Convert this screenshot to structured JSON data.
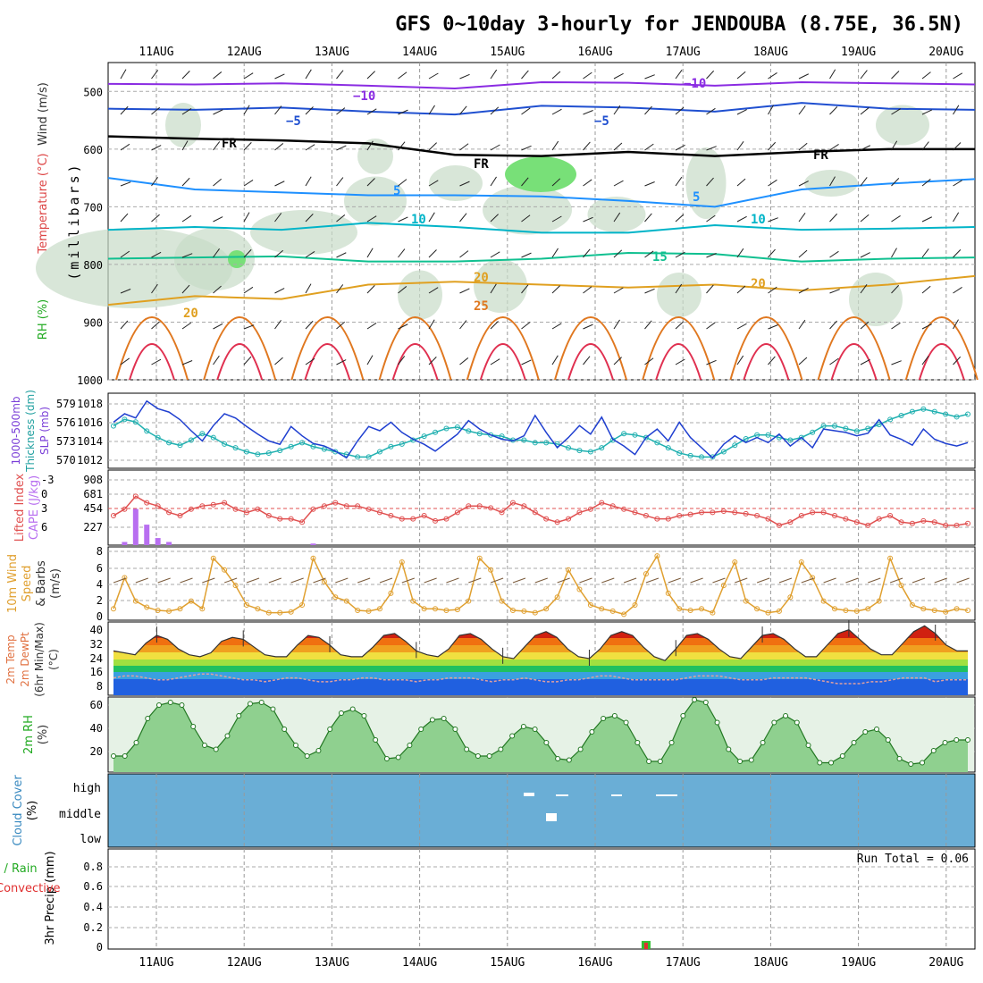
{
  "page": {
    "title": "GFS 0~10day 3-hourly for JENDOUBA (8.75E, 36.5N)"
  },
  "chart_data": [
    {
      "type": "line",
      "panel": "upper-air",
      "dates": [
        "11AUG",
        "12AUG",
        "13AUG",
        "14AUG",
        "15AUG",
        "16AUG",
        "17AUG",
        "18AUG",
        "19AUG",
        "20AUG"
      ],
      "ylabel_left": "(millibars)",
      "ylabel_parts": [
        {
          "text": "Wind (m/s)",
          "color": "#333333"
        },
        {
          "text": "Temperature (°C)",
          "color": "#dd4444"
        },
        {
          "text": "RH (%)",
          "color": "#22aa22"
        }
      ],
      "ylim": [
        1000,
        450
      ],
      "yticks": [
        500,
        600,
        700,
        800,
        900,
        1000
      ],
      "isotherms": [
        {
          "label": "−10",
          "color": "#8a2be2",
          "levels": [
            487,
            488,
            486,
            490,
            495,
            484,
            485,
            490,
            484,
            486,
            488
          ]
        },
        {
          "label": "−5",
          "color": "#1f4fd0",
          "levels": [
            530,
            532,
            528,
            535,
            540,
            525,
            528,
            535,
            520,
            530,
            532
          ]
        },
        {
          "label": "FR",
          "color": "#000000",
          "levels": [
            578,
            582,
            585,
            590,
            610,
            612,
            605,
            612,
            605,
            600,
            600
          ]
        },
        {
          "label": "5",
          "color": "#1e90ff",
          "levels": [
            650,
            670,
            675,
            680,
            680,
            682,
            690,
            700,
            670,
            660,
            652
          ]
        },
        {
          "label": "10",
          "color": "#00b4c8",
          "levels": [
            740,
            735,
            740,
            728,
            735,
            745,
            745,
            732,
            740,
            738,
            735
          ]
        },
        {
          "label": "15",
          "color": "#10c090",
          "levels": [
            790,
            788,
            786,
            795,
            795,
            790,
            780,
            782,
            795,
            790,
            788
          ]
        },
        {
          "label": "20",
          "color": "#e0a020",
          "levels": [
            870,
            855,
            860,
            835,
            830,
            835,
            840,
            835,
            845,
            835,
            820
          ]
        }
      ],
      "isotherm_labels": [
        {
          "text": "−10",
          "series": 0
        },
        {
          "text": "−10",
          "series": 0
        },
        {
          "text": "−5",
          "series": 1
        },
        {
          "text": "−5",
          "series": 1
        },
        {
          "text": "FR",
          "series": 2
        },
        {
          "text": "FR",
          "series": 2
        },
        {
          "text": "FR",
          "series": 2
        },
        {
          "text": "5",
          "series": 3
        },
        {
          "text": "5",
          "series": 3
        },
        {
          "text": "10",
          "series": 4
        },
        {
          "text": "10",
          "series": 4
        },
        {
          "text": "15",
          "series": 5
        },
        {
          "text": "20",
          "series": 6
        },
        {
          "text": "20",
          "series": 6
        },
        {
          "text": "20",
          "series": 6
        },
        {
          "text": "25",
          "series": 6
        }
      ]
    },
    {
      "type": "line",
      "panel": "slp-thickness",
      "ylabel": [
        "1000-500mb",
        "Thickness (dm)",
        "SLP (mb)"
      ],
      "left_ticks": [
        "579",
        "576",
        "573",
        "570"
      ],
      "right_ticks": [
        "1018",
        "1016",
        "1014",
        "1012"
      ],
      "series": [
        {
          "name": "SLP (mb)",
          "color": "#1f3fd0",
          "ylim": [
            1011,
            1019
          ],
          "values": [
            1016,
            1017,
            1016.5,
            1018.5,
            1017.6,
            1017.2,
            1016.3,
            1015,
            1013.8,
            1015.6,
            1017,
            1016.5,
            1015.5,
            1014.6,
            1013.8,
            1013.4,
            1015.5,
            1014.4,
            1013.5,
            1013.2,
            1012.6,
            1011.8,
            1013.8,
            1015.5,
            1015,
            1016,
            1014.8,
            1014,
            1013.4,
            1012.6,
            1013.6,
            1014.6,
            1016.2,
            1015.2,
            1014.5,
            1014,
            1013.8,
            1014.4,
            1016.8,
            1014.8,
            1013,
            1014.2,
            1015.6,
            1014.6,
            1016.6,
            1014,
            1013.2,
            1012.2,
            1014.2,
            1015.2,
            1013.8,
            1016,
            1014.2,
            1013,
            1011.8,
            1013.4,
            1014.4,
            1013.6,
            1014.2,
            1013.6,
            1014.6,
            1013.2,
            1014.2,
            1013,
            1015.2,
            1015,
            1014.8,
            1014.4,
            1014.7,
            1016.3,
            1014.5,
            1014,
            1013.3,
            1015.2,
            1014,
            1013.5,
            1013.2,
            1013.6
          ]
        },
        {
          "name": "Thickness (dm)",
          "color": "#20b0b0",
          "ylim": [
            570,
            580.5
          ],
          "values": [
            576,
            577,
            576.6,
            575.2,
            574.2,
            573.4,
            573,
            573.8,
            574.8,
            574.2,
            573.2,
            572.6,
            572,
            571.6,
            571.8,
            572.2,
            572.8,
            573.4,
            572.8,
            572.4,
            572,
            571.6,
            571.2,
            571.2,
            572,
            572.8,
            573.2,
            573.8,
            574.4,
            575,
            575.6,
            575.8,
            575.2,
            574.8,
            574.6,
            574.4,
            573.8,
            573.8,
            573.4,
            573.4,
            573.2,
            572.6,
            572.2,
            572,
            572.6,
            573.8,
            574.8,
            574.6,
            574.2,
            573.4,
            572.6,
            571.8,
            571.4,
            571.2,
            571.2,
            572,
            573,
            574,
            574.6,
            574.6,
            574.2,
            573.8,
            574.2,
            575,
            576,
            576,
            575.6,
            575.2,
            575.6,
            576.2,
            577,
            577.6,
            578.2,
            578.6,
            578.2,
            577.8,
            577.4,
            577.8
          ]
        }
      ]
    },
    {
      "type": "bar",
      "panel": "cape-li",
      "ylabel": [
        "Lifted Index",
        "CAPE (J/kg)"
      ],
      "left_ticks": [
        "-3",
        "0",
        "3",
        "6"
      ],
      "right_ticks": [
        "908",
        "681",
        "454",
        "227"
      ],
      "series": [
        {
          "name": "CAPE (J/kg)",
          "color": "#b86ff0",
          "ylim": [
            0,
            908
          ],
          "values": [
            0,
            40,
            460,
            260,
            90,
            40,
            0,
            0,
            0,
            0,
            0,
            0,
            0,
            0,
            0,
            0,
            0,
            0,
            20,
            0,
            0,
            0,
            0,
            0,
            0,
            0,
            0,
            0,
            0,
            0,
            0,
            0,
            0,
            0,
            0,
            0,
            0,
            0,
            0,
            0,
            0,
            0,
            0,
            0,
            0,
            0,
            0,
            0,
            0,
            0,
            0,
            0,
            0,
            0,
            0,
            0,
            0,
            0,
            0,
            0,
            0,
            0,
            0,
            0,
            0,
            0,
            0,
            0,
            0,
            0,
            0,
            0,
            0,
            0,
            0,
            0,
            0,
            0
          ]
        },
        {
          "name": "Lifted Index",
          "color": "#e05050",
          "ylim": [
            6,
            -4.5
          ],
          "values": [
            2,
            1,
            -1,
            0,
            0.5,
            1.5,
            2,
            1,
            0.5,
            0.3,
            0,
            1,
            1.5,
            1,
            2,
            2.5,
            2.5,
            3,
            1,
            0.5,
            0,
            0.5,
            0.5,
            1,
            1.5,
            2,
            2.5,
            2.5,
            2,
            2.8,
            2.5,
            1.5,
            0.5,
            0.5,
            0.8,
            1.5,
            0,
            0.5,
            1.5,
            2.5,
            3,
            2.5,
            1.5,
            1,
            0,
            0.5,
            1,
            1.5,
            2,
            2.5,
            2.5,
            2,
            1.8,
            1.5,
            1.5,
            1.3,
            1.5,
            1.7,
            2,
            2.5,
            3.5,
            3,
            2,
            1.5,
            1.5,
            2,
            2.5,
            3,
            3.5,
            2.5,
            2,
            3,
            3.2,
            2.8,
            3,
            3.5,
            3.5,
            3.2
          ]
        }
      ]
    },
    {
      "type": "line",
      "panel": "wind10m",
      "ylabel": [
        "10m Wind",
        "Speed",
        "& Barbs",
        "(m/s)"
      ],
      "yticks": [
        "8",
        "6",
        "4",
        "2",
        "0"
      ],
      "series": [
        {
          "name": "Speed",
          "color": "#e0a030",
          "ylim": [
            0,
            8.5
          ],
          "values": [
            1,
            5,
            2,
            1.2,
            0.8,
            0.7,
            1,
            2,
            1,
            7.5,
            6,
            4,
            1.5,
            1,
            0.5,
            0.5,
            0.6,
            1.5,
            7.5,
            4.5,
            2.5,
            2,
            0.8,
            0.7,
            1,
            3,
            7,
            2,
            1,
            1,
            0.8,
            0.9,
            2,
            7.5,
            6,
            2,
            0.8,
            0.7,
            0.5,
            1,
            2.5,
            6,
            3.5,
            1.5,
            1,
            0.7,
            0.3,
            1.5,
            5.5,
            7.8,
            3,
            1,
            0.8,
            1,
            0.5,
            4,
            7,
            2,
            1,
            0.5,
            0.7,
            2.5,
            7,
            5,
            2,
            1,
            0.8,
            0.7,
            1,
            2,
            7.5,
            4,
            1.5,
            1,
            0.8,
            0.6,
            1,
            0.8
          ]
        }
      ]
    },
    {
      "type": "area",
      "panel": "temp2m",
      "ylabel": [
        "2m Temp",
        "2m DewPt",
        "(6hr Min/Max)",
        "(°C)"
      ],
      "yticks": [
        "40",
        "32",
        "24",
        "16",
        "8"
      ],
      "ylim": [
        4,
        42
      ],
      "series": [
        {
          "name": "2m Temp",
          "values": [
            27,
            26,
            25,
            31,
            35,
            33,
            28,
            25,
            24,
            26,
            32,
            34,
            33,
            29,
            25,
            24,
            24,
            30,
            35,
            34,
            30,
            25,
            24,
            24,
            29,
            35,
            36,
            32,
            27,
            25,
            24,
            28,
            35,
            36,
            33,
            28,
            24,
            23,
            29,
            35,
            37,
            34,
            28,
            24,
            23,
            28,
            35,
            37,
            35,
            29,
            24,
            22,
            28,
            35,
            36,
            33,
            28,
            24,
            23,
            29,
            35,
            36,
            33,
            28,
            24,
            24,
            30,
            36,
            38,
            33,
            28,
            25,
            25,
            31,
            37,
            40,
            36,
            30,
            27,
            27
          ]
        },
        {
          "name": "2m DewPt",
          "values": [
            13,
            14,
            14,
            13,
            12,
            12,
            13,
            14,
            15,
            15,
            14,
            13,
            12,
            12,
            11,
            12,
            13,
            13,
            12,
            11,
            11,
            12,
            12,
            13,
            13,
            12,
            12,
            12,
            11,
            12,
            12,
            13,
            13,
            13,
            12,
            11,
            12,
            12,
            13,
            12,
            11,
            11,
            12,
            12,
            13,
            14,
            14,
            13,
            12,
            12,
            12,
            12,
            12,
            13,
            14,
            14,
            14,
            13,
            12,
            12,
            12,
            13,
            13,
            13,
            13,
            12,
            11,
            10,
            10,
            10,
            11,
            11,
            12,
            13,
            13,
            13,
            11,
            12,
            12
          ]
        }
      ]
    },
    {
      "type": "area",
      "panel": "rh2m",
      "ylabel": [
        "2m RH",
        "(%)"
      ],
      "yticks": [
        "60",
        "40",
        "20"
      ],
      "ylim": [
        8,
        64
      ],
      "values": [
        20,
        20,
        30,
        48,
        58,
        60,
        58,
        42,
        28,
        25,
        35,
        50,
        59,
        60,
        55,
        40,
        28,
        20,
        24,
        40,
        52,
        55,
        50,
        32,
        18,
        19,
        28,
        40,
        47,
        48,
        40,
        25,
        20,
        20,
        25,
        35,
        42,
        40,
        30,
        18,
        17,
        25,
        38,
        48,
        50,
        45,
        30,
        16,
        16,
        30,
        50,
        62,
        60,
        45,
        25,
        16,
        17,
        30,
        45,
        50,
        45,
        28,
        15,
        15,
        20,
        30,
        38,
        40,
        32,
        18,
        14,
        15,
        24,
        30,
        32,
        32
      ]
    },
    {
      "type": "table",
      "panel": "cloud",
      "ylabel": [
        "Cloud Cover",
        "(%)"
      ],
      "row_labels": [
        "high",
        "middle",
        "low"
      ]
    },
    {
      "type": "bar",
      "panel": "precip",
      "ylabel": [
        "3hr Precip (mm)",
        "Total / Rain",
        "Convective"
      ],
      "yticks": [
        "0.8",
        "0.6",
        "0.4",
        "0.2",
        "0"
      ],
      "ylim": [
        0,
        0.95
      ],
      "run_total": "Run Total = 0.06",
      "values": [
        0,
        0,
        0,
        0,
        0,
        0,
        0,
        0,
        0,
        0,
        0,
        0,
        0,
        0,
        0,
        0,
        0,
        0,
        0,
        0,
        0,
        0,
        0,
        0,
        0,
        0,
        0,
        0,
        0,
        0,
        0,
        0,
        0,
        0,
        0,
        0,
        0,
        0,
        0,
        0,
        0,
        0,
        0,
        0,
        0,
        0,
        0,
        0,
        0.06,
        0,
        0,
        0,
        0,
        0,
        0,
        0,
        0,
        0,
        0,
        0,
        0,
        0,
        0,
        0,
        0,
        0,
        0,
        0,
        0,
        0,
        0,
        0,
        0,
        0,
        0,
        0,
        0,
        0
      ]
    }
  ]
}
